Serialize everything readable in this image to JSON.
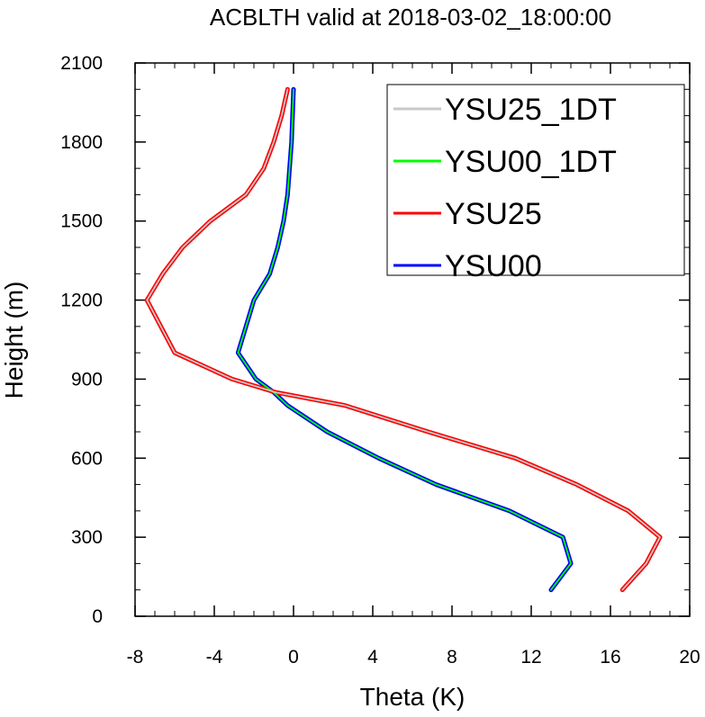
{
  "chart_data": {
    "type": "line",
    "title": "ACBLTH valid at 2018-03-02_18:00:00",
    "xlabel": "Theta (K)",
    "ylabel": "Height (m)",
    "xlim": [
      -8,
      20
    ],
    "ylim": [
      0,
      2100
    ],
    "xticks": [
      -8,
      -4,
      0,
      4,
      8,
      12,
      16,
      20
    ],
    "yticks": [
      0,
      300,
      600,
      900,
      1200,
      1500,
      1800,
      2100
    ],
    "x_minor_step": 1,
    "y_minor_step": 100,
    "grid": false,
    "legend": "top-right",
    "series": [
      {
        "name": "YSU25_1DT",
        "color": "#c8c8c8",
        "x": [
          16.6,
          17.8,
          18.5,
          16.9,
          14.3,
          11.2,
          6.8,
          2.6,
          -0.9,
          -3.1,
          -6.0,
          -7.4,
          -6.6,
          -5.6,
          -4.2,
          -2.4,
          -1.5,
          -1.0,
          -0.6,
          -0.3
        ],
        "y": [
          100,
          200,
          300,
          400,
          500,
          600,
          700,
          800,
          850,
          900,
          1000,
          1200,
          1300,
          1400,
          1500,
          1600,
          1700,
          1800,
          1900,
          2000
        ]
      },
      {
        "name": "YSU00_1DT",
        "color": "#00ff00",
        "x": [
          13.0,
          14.0,
          13.6,
          10.9,
          7.2,
          4.3,
          1.7,
          -0.3,
          -1.0,
          -1.9,
          -2.8,
          -2.0,
          -1.2,
          -0.8,
          -0.5,
          -0.3,
          -0.2,
          -0.1,
          0.0
        ],
        "y": [
          100,
          200,
          300,
          400,
          500,
          600,
          700,
          800,
          850,
          900,
          1000,
          1200,
          1300,
          1400,
          1500,
          1600,
          1700,
          1800,
          2000
        ]
      },
      {
        "name": "YSU25",
        "color": "#ff0000",
        "x": [
          16.6,
          17.8,
          18.5,
          16.9,
          14.3,
          11.2,
          6.8,
          2.6,
          -0.9,
          -3.1,
          -6.0,
          -7.4,
          -6.6,
          -5.6,
          -4.2,
          -2.4,
          -1.5,
          -1.0,
          -0.6,
          -0.3
        ],
        "y": [
          100,
          200,
          300,
          400,
          500,
          600,
          700,
          800,
          850,
          900,
          1000,
          1200,
          1300,
          1400,
          1500,
          1600,
          1700,
          1800,
          1900,
          2000
        ]
      },
      {
        "name": "YSU00",
        "color": "#0000ff",
        "x": [
          13.0,
          14.0,
          13.6,
          10.9,
          7.2,
          4.3,
          1.7,
          -0.3,
          -1.0,
          -1.9,
          -2.8,
          -2.0,
          -1.2,
          -0.8,
          -0.5,
          -0.3,
          -0.2,
          -0.1,
          0.0
        ],
        "y": [
          100,
          200,
          300,
          400,
          500,
          600,
          700,
          800,
          850,
          900,
          1000,
          1200,
          1300,
          1400,
          1500,
          1600,
          1700,
          1800,
          2000
        ]
      }
    ]
  }
}
